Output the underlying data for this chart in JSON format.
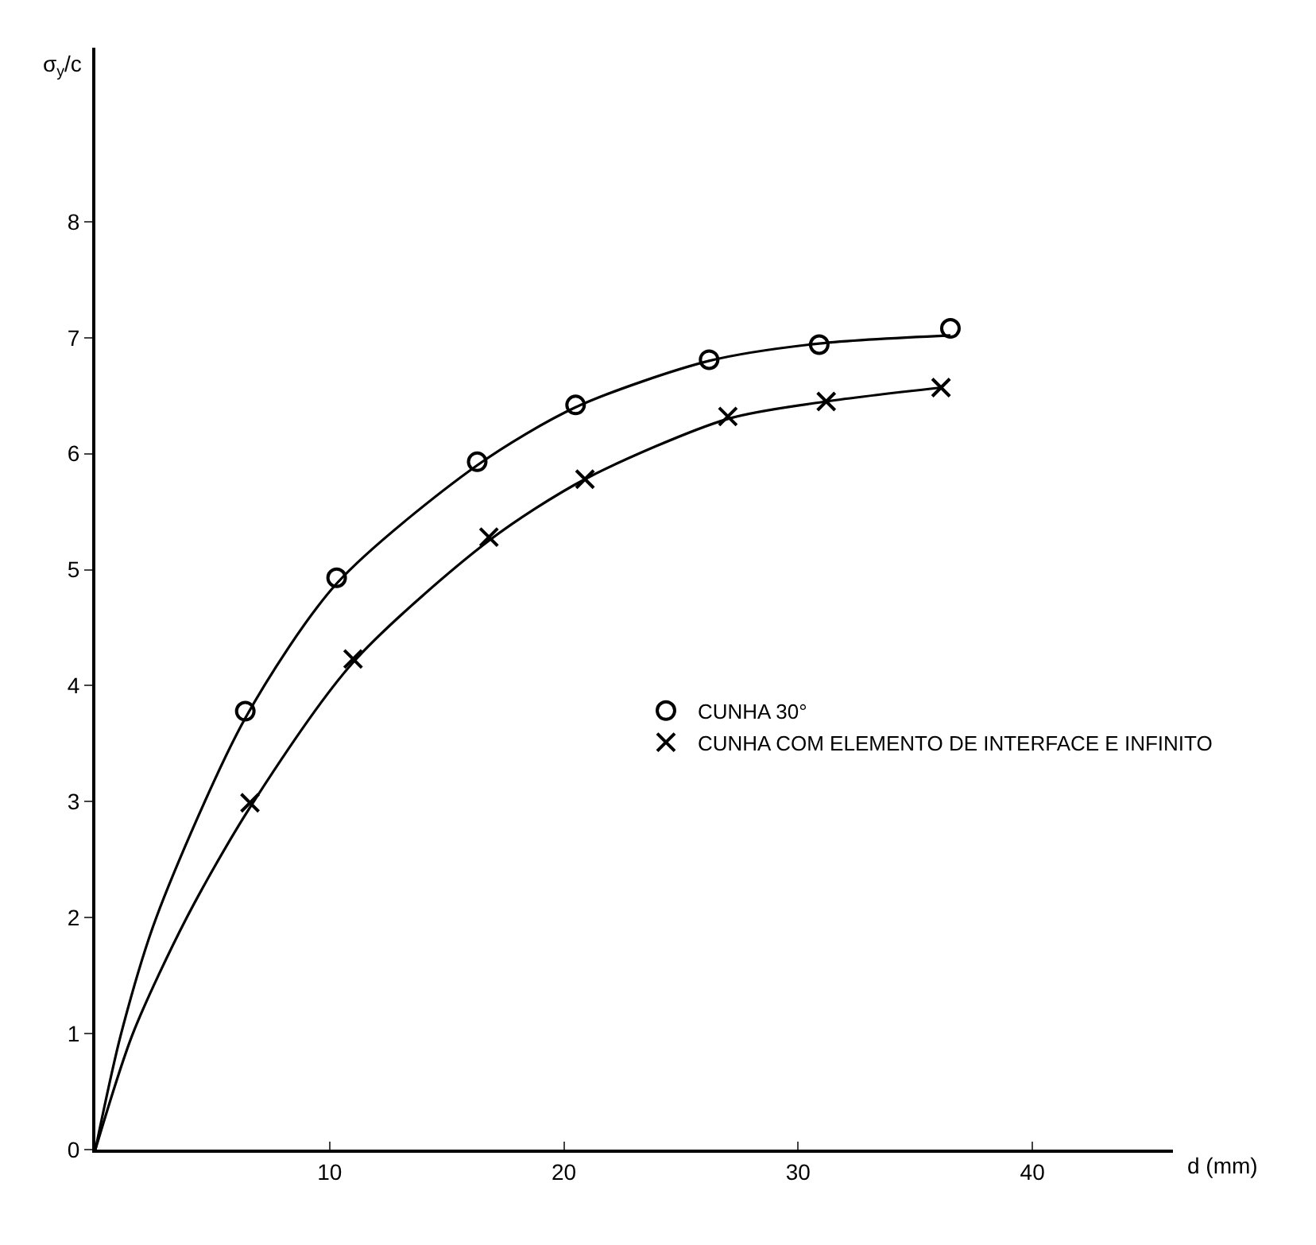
{
  "chart_data": {
    "type": "scatter",
    "xlabel": "d (mm)",
    "ylabel": "σ$_{y}$/c",
    "xlim": [
      0,
      46
    ],
    "ylim": [
      0,
      9.5
    ],
    "xticks": [
      10,
      20,
      30,
      40
    ],
    "yticks": [
      0,
      1,
      2,
      3,
      4,
      5,
      6,
      7,
      8
    ],
    "grid": false,
    "legend": "right",
    "line_style": "solid",
    "series": [
      {
        "name": "CUNHA 30°",
        "color": "#000000",
        "marker": "circle",
        "x": [
          6.4,
          10.3,
          16.3,
          20.5,
          26.2,
          30.9,
          36.5
        ],
        "values": [
          3.78,
          4.93,
          5.93,
          6.42,
          6.81,
          6.94,
          7.08
        ]
      },
      {
        "name": "CUNHA COM ELEMENTO DE INTERFACE E INFINITO",
        "color": "#000000",
        "marker": "cross",
        "x": [
          6.6,
          11.0,
          16.8,
          20.9,
          27.0,
          31.2,
          36.1
        ],
        "values": [
          2.99,
          4.23,
          5.28,
          5.78,
          6.32,
          6.45,
          6.57
        ]
      },
      {
        "type": "line",
        "color": "#000000",
        "marker": "none",
        "x": [
          0,
          1.1,
          2.6,
          6.4,
          10.3,
          16.3,
          20.5,
          26.2,
          30.9,
          36.5
        ],
        "values": [
          0,
          1,
          2,
          3.72,
          4.88,
          5.9,
          6.4,
          6.8,
          6.95,
          7.02
        ]
      },
      {
        "type": "line",
        "color": "#000000",
        "marker": "none",
        "x": [
          0,
          1.6,
          3.9,
          6.6,
          11.0,
          16.8,
          20.9,
          27.0,
          31.2,
          36.1
        ],
        "values": [
          0,
          1,
          2,
          2.95,
          4.2,
          5.25,
          5.78,
          6.3,
          6.45,
          6.57
        ]
      }
    ]
  }
}
